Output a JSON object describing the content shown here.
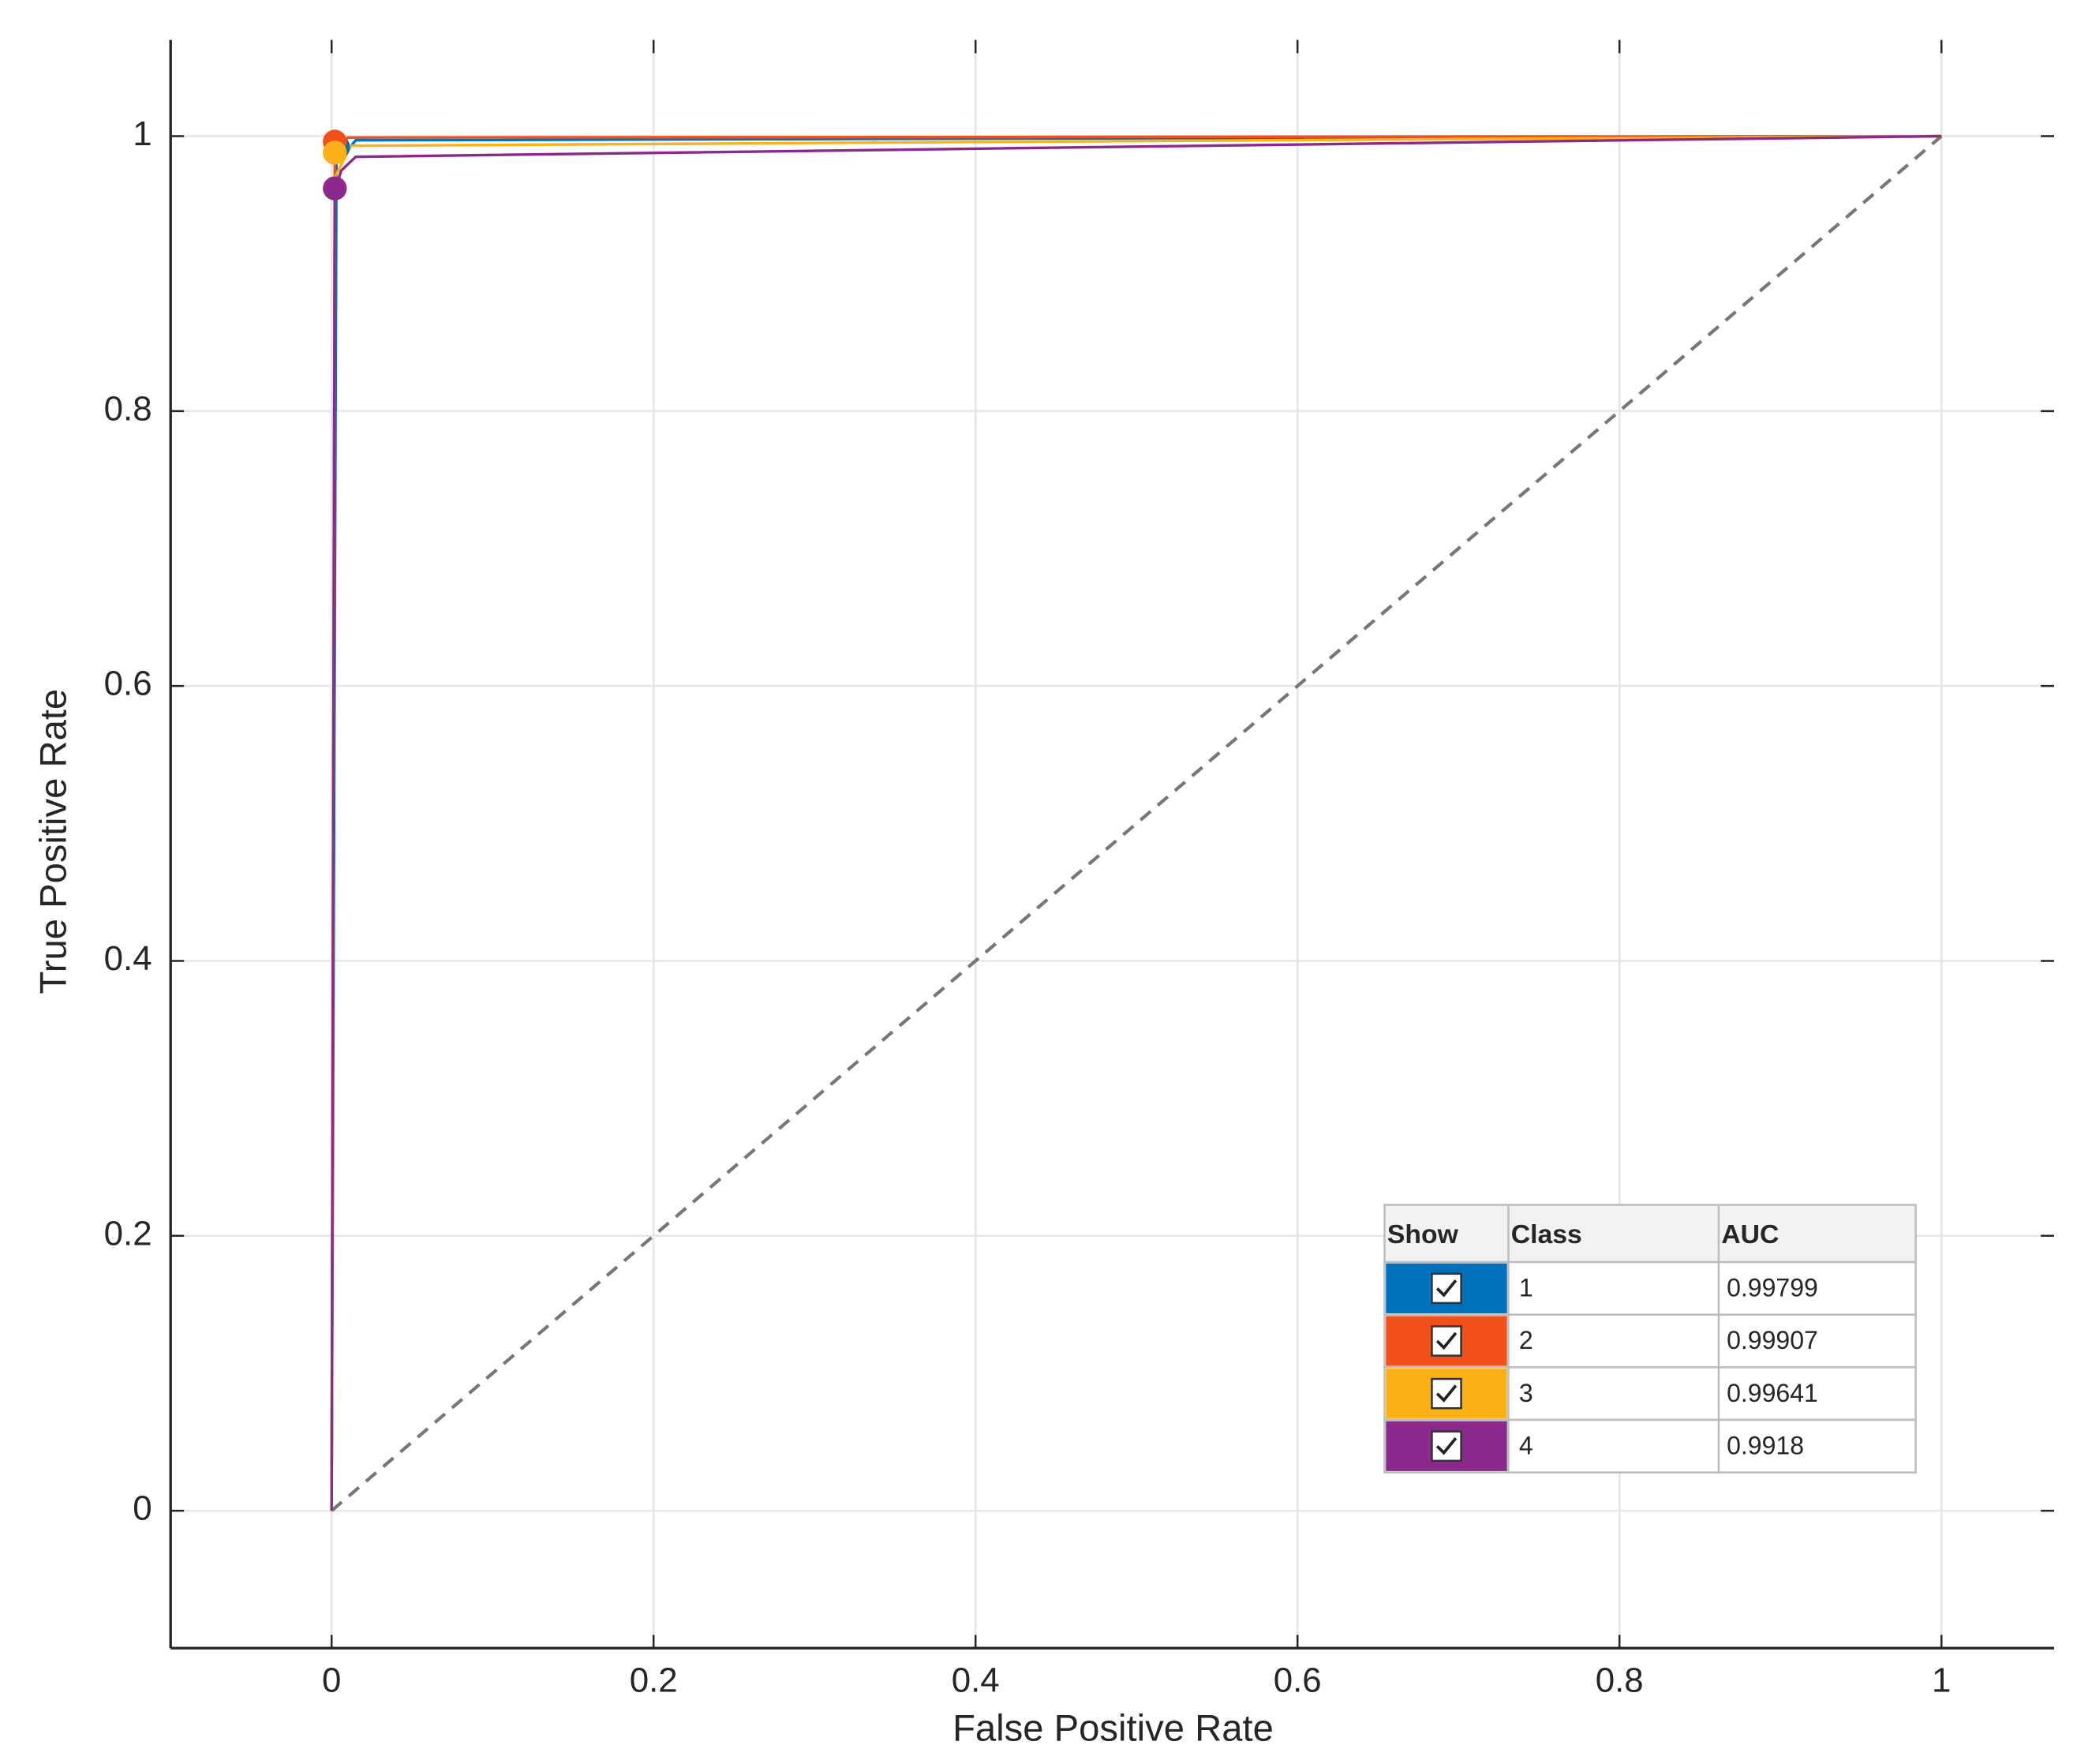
{
  "chart_data": {
    "type": "line",
    "x_label": "False Positive Rate",
    "y_label": "True Positive Rate",
    "xlim": [
      -0.1,
      1.07
    ],
    "ylim": [
      -0.1,
      1.07
    ],
    "xticks": [
      0,
      0.2,
      0.4,
      0.6,
      0.8,
      1
    ],
    "yticks": [
      0,
      0.2,
      0.4,
      0.6,
      0.8,
      1
    ],
    "grid": true,
    "reference_line": {
      "x": [
        0,
        1
      ],
      "y": [
        0,
        1
      ]
    },
    "legend_headers": [
      "Show",
      "Class",
      "AUC"
    ],
    "series": [
      {
        "name": "1",
        "color": "#0072bd",
        "auc": 0.99799,
        "x": [
          0,
          0.003,
          0.015,
          1
        ],
        "values": [
          0,
          0.98,
          0.997,
          1
        ],
        "operating_point": {
          "x": 0.004,
          "y": 0.992
        }
      },
      {
        "name": "2",
        "color": "#f2501b",
        "auc": 0.99907,
        "x": [
          0,
          0.002,
          0.01,
          1
        ],
        "values": [
          0,
          0.99,
          0.999,
          1
        ],
        "operating_point": {
          "x": 0.002,
          "y": 0.996
        }
      },
      {
        "name": "3",
        "color": "#fbb117",
        "auc": 0.99641,
        "x": [
          0,
          0.002,
          0.012,
          1
        ],
        "values": [
          0,
          0.97,
          0.993,
          1
        ],
        "operating_point": {
          "x": 0.002,
          "y": 0.988
        }
      },
      {
        "name": "4",
        "color": "#8b2a8c",
        "auc": 0.9918,
        "x": [
          0,
          0.002,
          0.006,
          0.015,
          1
        ],
        "values": [
          0,
          0.96,
          0.975,
          0.985,
          1
        ],
        "operating_point": {
          "x": 0.002,
          "y": 0.962
        }
      }
    ]
  }
}
